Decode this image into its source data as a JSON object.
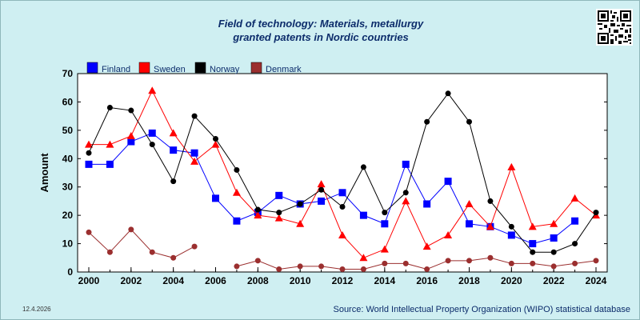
{
  "title_line1": "Field of technology: Materials, metallurgy",
  "title_line2": "granted patents in Nordic countries",
  "date": "12.4.2026",
  "source": "Source: World Intellectual Property Organization (WIPO) statistical database",
  "chart_data": {
    "type": "line",
    "ylabel": "Amount",
    "xlabel": "",
    "xlim": [
      2000,
      2024
    ],
    "ylim": [
      0,
      70
    ],
    "x_ticks": [
      2000,
      2002,
      2004,
      2006,
      2008,
      2010,
      2012,
      2014,
      2016,
      2018,
      2020,
      2022,
      2024
    ],
    "y_ticks": [
      0,
      10,
      20,
      30,
      40,
      50,
      60,
      70
    ],
    "grid": false,
    "legend_position": "top-left",
    "x": [
      2000,
      2001,
      2002,
      2003,
      2004,
      2005,
      2006,
      2007,
      2008,
      2009,
      2010,
      2011,
      2012,
      2013,
      2014,
      2015,
      2016,
      2017,
      2018,
      2019,
      2020,
      2021,
      2022,
      2023,
      2024
    ],
    "series": [
      {
        "name": "Finland",
        "color": "#0000ff",
        "marker": "square",
        "values": [
          38,
          38,
          46,
          49,
          43,
          42,
          26,
          18,
          21,
          27,
          24,
          25,
          28,
          20,
          17,
          38,
          24,
          32,
          17,
          16,
          13,
          10,
          12,
          18,
          null
        ]
      },
      {
        "name": "Sweden",
        "color": "#ff0000",
        "marker": "triangle",
        "values": [
          45,
          45,
          48,
          64,
          49,
          39,
          45,
          28,
          20,
          19,
          17,
          31,
          13,
          5,
          8,
          25,
          9,
          13,
          24,
          16,
          37,
          16,
          17,
          26,
          20
        ]
      },
      {
        "name": "Norway",
        "color": "#000000",
        "marker": "circle",
        "values": [
          42,
          58,
          57,
          45,
          32,
          55,
          47,
          36,
          22,
          21,
          24,
          29,
          23,
          37,
          21,
          28,
          53,
          63,
          53,
          25,
          16,
          7,
          7,
          10,
          21
        ]
      },
      {
        "name": "Denmark",
        "color": "#9b2f2f",
        "marker": "circle",
        "values": [
          14,
          7,
          15,
          7,
          5,
          9,
          null,
          2,
          4,
          1,
          2,
          2,
          1,
          1,
          3,
          3,
          1,
          4,
          4,
          5,
          3,
          3,
          2,
          3,
          4
        ]
      }
    ]
  }
}
